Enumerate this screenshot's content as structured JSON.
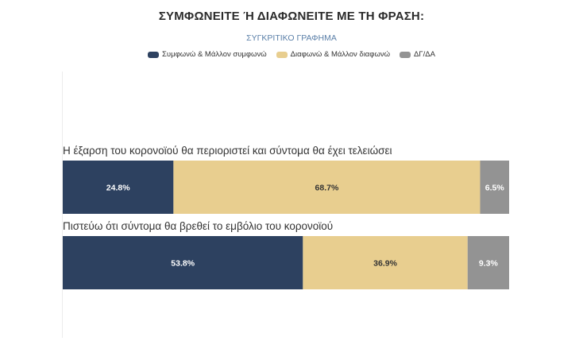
{
  "header": {
    "title": "ΣΥΜΦΩΝΕΙΤΕ Ή ΔΙΑΦΩΝΕΙΤΕ ΜΕ ΤΗ ΦΡΑΣΗ:",
    "subtitle": "ΣΥΓΚΡΙΤΙΚΟ ΓΡΑΦΗΜΑ"
  },
  "chart_data": {
    "type": "bar",
    "orientation": "horizontal",
    "stacked": true,
    "normalized": true,
    "title": "ΣΥΜΦΩΝΕΙΤΕ Ή ΔΙΑΦΩΝΕΙΤΕ ΜΕ ΤΗ ΦΡΑΣΗ:",
    "subtitle": "ΣΥΓΚΡΙΤΙΚΟ ΓΡΑΦΗΜΑ",
    "legend_position": "top",
    "grid": false,
    "categories": [
      "Η έξαρση του κορονοϊού θα περιοριστεί και σύντομα θα έχει τελειώσει",
      "Πιστεύω ότι σύντομα θα βρεθεί το εμβόλιο του κορονοϊού"
    ],
    "series": [
      {
        "name": "Συμφωνώ & Μάλλον συμφωνώ",
        "color": "#2d4160",
        "label_color": "#ffffff",
        "values": [
          24.8,
          53.8
        ],
        "labels": [
          "24.8%",
          "53.8%"
        ]
      },
      {
        "name": "Διαφωνώ & Μάλλον διαφωνώ",
        "color": "#e8ce8f",
        "label_color": "#333333",
        "values": [
          68.7,
          36.9
        ],
        "labels": [
          "68.7%",
          "36.9%"
        ]
      },
      {
        "name": "ΔΓ/ΔΑ",
        "color": "#939393",
        "label_color": "#ffffff",
        "values": [
          6.5,
          9.3
        ],
        "labels": [
          "6.5%",
          "9.3%"
        ]
      }
    ]
  }
}
